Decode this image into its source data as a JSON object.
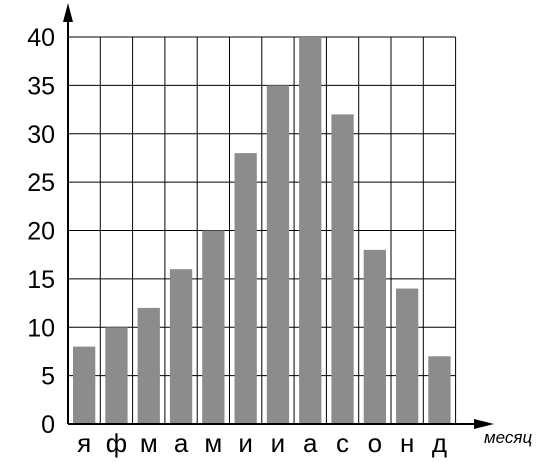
{
  "chart_data": {
    "type": "bar",
    "title": "",
    "xlabel": "месяц",
    "ylabel": "",
    "categories": [
      "я",
      "ф",
      "м",
      "а",
      "м",
      "и",
      "и",
      "а",
      "с",
      "о",
      "н",
      "д"
    ],
    "values": [
      8,
      10,
      12,
      16,
      20,
      28,
      35,
      40,
      32,
      18,
      14,
      7
    ],
    "y_ticks": [
      "0",
      "5",
      "10",
      "15",
      "20",
      "25",
      "30",
      "35",
      "40"
    ],
    "ylim": [
      0,
      40
    ],
    "grid": true,
    "bar_color": "#8c8c8c",
    "grid_color": "#000000"
  }
}
